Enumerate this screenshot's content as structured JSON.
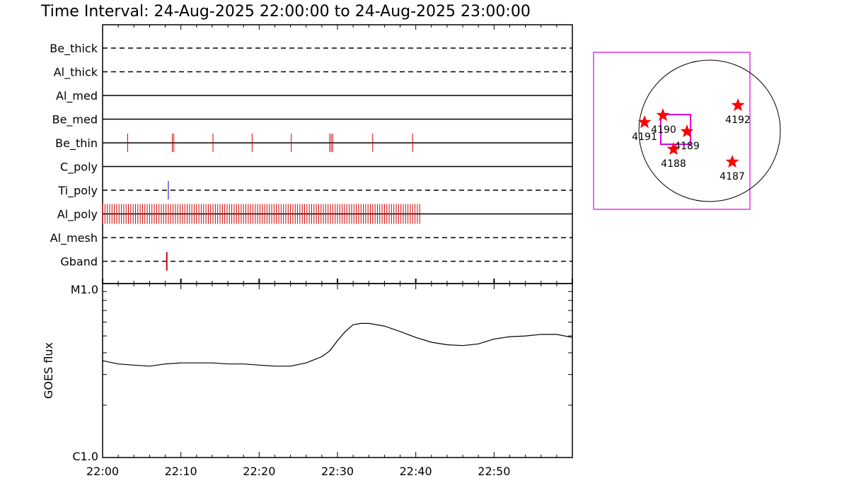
{
  "title": "Time Interval: 24-Aug-2025 22:00:00 to 24-Aug-2025 23:00:00",
  "chart_data": [
    {
      "type": "timeline",
      "x_range": [
        "22:00",
        "23:00"
      ],
      "x_tick_labels": [
        "22:00",
        "22:10",
        "22:20",
        "22:30",
        "22:40",
        "22:50"
      ],
      "rows": [
        {
          "name": "Be_thick",
          "style": "dashed",
          "events": []
        },
        {
          "name": "Al_thick",
          "style": "dashed",
          "events": []
        },
        {
          "name": "Al_med",
          "style": "solid",
          "events": []
        },
        {
          "name": "Be_med",
          "style": "solid",
          "events": []
        },
        {
          "name": "Be_thin",
          "style": "solid",
          "color": "#cc0000",
          "events": [
            3.2,
            8.9,
            9.1,
            14.1,
            19.1,
            24.1,
            29.0,
            29.2,
            29.4,
            34.5,
            39.6
          ]
        },
        {
          "name": "C_poly",
          "style": "solid",
          "events": []
        },
        {
          "name": "Ti_poly",
          "style": "dashed",
          "color": "#0000cc",
          "events": [
            8.4
          ]
        },
        {
          "name": "Al_poly",
          "style": "solid",
          "color": "#cc0000",
          "events_range": [
            0.0,
            40.5
          ],
          "events_step": 0.3
        },
        {
          "name": "Al_mesh",
          "style": "dashed",
          "events": []
        },
        {
          "name": "Gband",
          "style": "dashed",
          "color": "#cc0000",
          "events": [
            8.2
          ]
        }
      ]
    },
    {
      "type": "line",
      "ylabel": "GOES flux",
      "y_tick_labels": [
        "M1.0",
        "C1.0"
      ],
      "yscale": "log",
      "ylim": [
        "C1.0",
        "M1.0"
      ],
      "x_unit": "minutes after 22:00",
      "series": [
        {
          "x": [
            0,
            2,
            4,
            6,
            8,
            10,
            12,
            14,
            16,
            18,
            20,
            22,
            24,
            26,
            28,
            29,
            30,
            31,
            32,
            33,
            34,
            36,
            38,
            40,
            42,
            44,
            46,
            48,
            50,
            52,
            54,
            56,
            58,
            60
          ],
          "y": [
            3.6,
            3.45,
            3.4,
            3.35,
            3.45,
            3.5,
            3.5,
            3.5,
            3.45,
            3.45,
            3.4,
            3.35,
            3.35,
            3.5,
            3.8,
            4.1,
            4.7,
            5.3,
            5.8,
            5.9,
            5.9,
            5.7,
            5.3,
            4.9,
            4.6,
            4.45,
            4.4,
            4.5,
            4.8,
            4.95,
            5.0,
            5.1,
            5.1,
            4.9
          ]
        }
      ]
    }
  ],
  "sun_map": {
    "regions": [
      {
        "label": "4191"
      },
      {
        "label": "4190"
      },
      {
        "label": "4189"
      },
      {
        "label": "4188"
      },
      {
        "label": "4192"
      },
      {
        "label": "4187"
      }
    ],
    "colors": {
      "box": "#dd00dd",
      "marker": "#ff0000"
    }
  }
}
